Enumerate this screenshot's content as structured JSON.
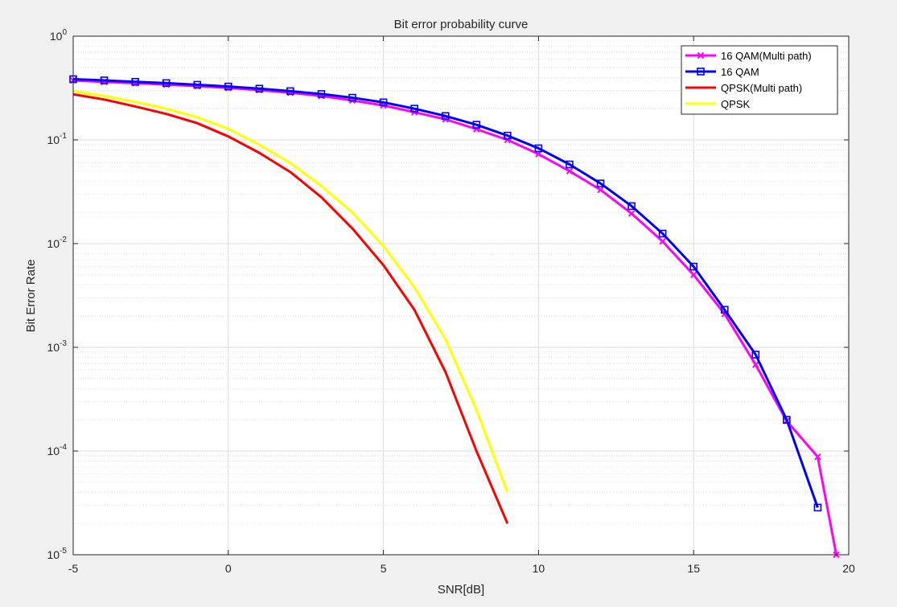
{
  "chart_data": {
    "type": "line",
    "title": "Bit error probability curve",
    "xlabel": "SNR[dB]",
    "ylabel": "Bit Error Rate",
    "xlim": [
      -5,
      20
    ],
    "ylim": [
      1e-05,
      1
    ],
    "yscale": "log",
    "grid": true,
    "minor_grid": true,
    "legend_position": "top-right",
    "x_ticks": [
      -5,
      0,
      5,
      10,
      15,
      20
    ],
    "x_tick_labels": [
      "-5",
      "0",
      "5",
      "10",
      "15",
      "20"
    ],
    "y_ticks": [
      {
        "value": 1,
        "base": "10",
        "exp": "0"
      },
      {
        "value": 0.1,
        "base": "10",
        "exp": "-1"
      },
      {
        "value": 0.01,
        "base": "10",
        "exp": "-2"
      },
      {
        "value": 0.001,
        "base": "10",
        "exp": "-3"
      },
      {
        "value": 0.0001,
        "base": "10",
        "exp": "-4"
      },
      {
        "value": 1e-05,
        "base": "10",
        "exp": "-5"
      }
    ],
    "series": [
      {
        "name": "16 QAM(Multi path)",
        "color": "#ff00ff",
        "marker": "x",
        "x": [
          -5,
          -4,
          -3,
          -2,
          -1,
          0,
          1,
          2,
          3,
          4,
          5,
          6,
          7,
          8,
          9,
          10,
          11,
          12,
          13,
          14,
          15,
          16,
          17,
          18,
          19,
          19.6
        ],
        "y": [
          0.375,
          0.362,
          0.352,
          0.342,
          0.33,
          0.317,
          0.302,
          0.285,
          0.265,
          0.24,
          0.215,
          0.185,
          0.158,
          0.127,
          0.1,
          0.073,
          0.05,
          0.033,
          0.0195,
          0.0105,
          0.005,
          0.0021,
          0.00068,
          0.000195,
          8.8e-05,
          1e-05
        ]
      },
      {
        "name": "16 QAM",
        "color": "#0000ff",
        "marker": "square",
        "x": [
          -5,
          -4,
          -3,
          -2,
          -1,
          0,
          1,
          2,
          3,
          4,
          5,
          6,
          7,
          8,
          9,
          10,
          11,
          12,
          13,
          14,
          15,
          16,
          17,
          18,
          19
        ],
        "y": [
          0.385,
          0.375,
          0.363,
          0.353,
          0.34,
          0.327,
          0.312,
          0.295,
          0.277,
          0.255,
          0.23,
          0.2,
          0.17,
          0.14,
          0.11,
          0.083,
          0.058,
          0.038,
          0.023,
          0.0125,
          0.006,
          0.0023,
          0.00085,
          0.0002,
          2.85e-05
        ]
      },
      {
        "name": "QPSK(Multi path)",
        "color": "#ff0000",
        "marker": "none",
        "x": [
          -5,
          -4,
          -3,
          -2,
          -1,
          0,
          1,
          2,
          3,
          4,
          5,
          6,
          7,
          8,
          9
        ],
        "y": [
          0.275,
          0.245,
          0.21,
          0.178,
          0.145,
          0.108,
          0.075,
          0.049,
          0.028,
          0.014,
          0.0062,
          0.0023,
          0.00058,
          0.0001,
          2e-05
        ]
      },
      {
        "name": "QPSK",
        "color": "#ffff00",
        "marker": "none",
        "x": [
          -5,
          -4,
          -3,
          -2,
          -1,
          0,
          1,
          2,
          3,
          4,
          5,
          6,
          7,
          8,
          9
        ],
        "y": [
          0.295,
          0.265,
          0.232,
          0.2,
          0.165,
          0.128,
          0.09,
          0.06,
          0.036,
          0.02,
          0.0095,
          0.0038,
          0.0012,
          0.00025,
          4e-05
        ]
      }
    ]
  }
}
